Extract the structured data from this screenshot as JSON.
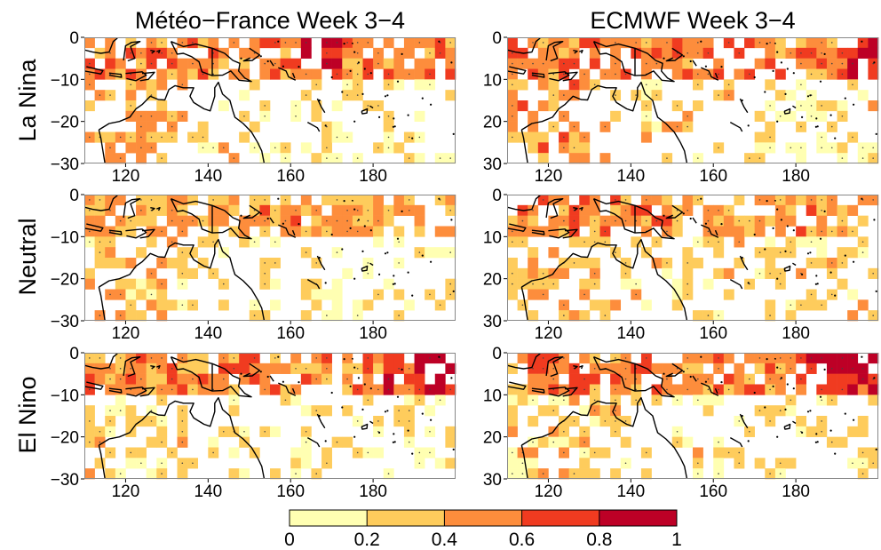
{
  "chart_data": {
    "type": "heatmap",
    "column_titles": [
      "Météo−France Week 3−4",
      "ECMWF Week 3−4"
    ],
    "row_labels": [
      "La Nina",
      "Neutral",
      "El Nino"
    ],
    "x_ticks": [
      "120",
      "140",
      "160",
      "180"
    ],
    "x_tick_values": [
      120,
      140,
      160,
      180
    ],
    "xlim": [
      110,
      200
    ],
    "ylim": [
      -30,
      0
    ],
    "y_ticks": {
      "Météo−France Week 3−4": [
        "0",
        "−10",
        "−20",
        "−30"
      ],
      "ECMWF Week 3−4": [
        "0",
        "10",
        "20",
        "30"
      ]
    },
    "y_tick_values": [
      0,
      -10,
      -20,
      -30
    ],
    "colorbar": {
      "ticks": [
        "0",
        "0.2",
        "0.4",
        "0.6",
        "0.8",
        "1"
      ],
      "bins": [
        [
          0,
          0.2
        ],
        [
          0.2,
          0.4
        ],
        [
          0.4,
          0.6
        ],
        [
          0.6,
          0.8
        ],
        [
          0.8,
          1.0
        ]
      ],
      "colors": [
        "#ffffb2",
        "#fecc5c",
        "#fd8d3c",
        "#f03b20",
        "#bd0026"
      ]
    },
    "grid_resolution_deg": 2.5,
    "panels": [
      {
        "model": "Météo−France Week 3−4",
        "enso": "La Nina"
      },
      {
        "model": "ECMWF Week 3−4",
        "enso": "La Nina"
      },
      {
        "model": "Météo−France Week 3−4",
        "enso": "Neutral"
      },
      {
        "model": "ECMWF Week 3−4",
        "enso": "Neutral"
      },
      {
        "model": "Météo−France Week 3−4",
        "enso": "El Nino"
      },
      {
        "model": "ECMWF Week 3−4",
        "enso": "El Nino"
      }
    ],
    "coastline": [
      [
        [
          113.5,
          -22
        ],
        [
          114,
          -24
        ],
        [
          114.5,
          -27
        ],
        [
          115,
          -30
        ]
      ],
      [
        [
          113.5,
          -22
        ],
        [
          116,
          -20.5
        ],
        [
          118.5,
          -20
        ],
        [
          121,
          -19
        ],
        [
          122.5,
          -17
        ],
        [
          124,
          -16
        ],
        [
          126,
          -14
        ],
        [
          128,
          -14.8
        ],
        [
          129.5,
          -14.9
        ],
        [
          130.5,
          -12.4
        ],
        [
          132,
          -11.5
        ],
        [
          134,
          -12
        ],
        [
          136.5,
          -12
        ],
        [
          135.6,
          -14
        ],
        [
          136.5,
          -15.5
        ],
        [
          139,
          -17
        ],
        [
          140.5,
          -17.5
        ],
        [
          141.6,
          -14
        ],
        [
          141.6,
          -12
        ],
        [
          142.5,
          -10.7
        ],
        [
          143.5,
          -13.5
        ],
        [
          145.3,
          -15
        ],
        [
          146,
          -17.5
        ],
        [
          146.5,
          -19
        ],
        [
          148.5,
          -20.5
        ],
        [
          150.5,
          -22.5
        ],
        [
          152,
          -25
        ],
        [
          153,
          -27
        ],
        [
          153.6,
          -30
        ]
      ],
      [
        [
          131,
          -1
        ],
        [
          134,
          -2.2
        ],
        [
          137,
          -1.6
        ],
        [
          141,
          -2.6
        ],
        [
          144,
          -3.8
        ],
        [
          146,
          -5.5
        ],
        [
          147.7,
          -6.2
        ],
        [
          147.4,
          -8
        ],
        [
          148.9,
          -9.7
        ],
        [
          150.5,
          -10.5
        ],
        [
          147.5,
          -10.2
        ],
        [
          145.5,
          -8
        ],
        [
          143.5,
          -9
        ],
        [
          141,
          -9.1
        ],
        [
          138.5,
          -8.2
        ],
        [
          137.8,
          -5.8
        ],
        [
          136,
          -4.6
        ],
        [
          134,
          -3.8
        ],
        [
          132.5,
          -4
        ],
        [
          131,
          -1
        ]
      ],
      [
        [
          141,
          -2.6
        ],
        [
          141,
          -9.1
        ]
      ],
      [
        [
          110.5,
          -7
        ],
        [
          114.5,
          -7.9
        ],
        [
          114,
          -8.7
        ],
        [
          110,
          -8
        ]
      ],
      [
        [
          116,
          -8.5
        ],
        [
          118.9,
          -8.8
        ],
        [
          119,
          -9.5
        ],
        [
          116,
          -9
        ]
      ],
      [
        [
          120,
          -8.6
        ],
        [
          124,
          -8.2
        ],
        [
          125,
          -9
        ],
        [
          122.5,
          -10.3
        ],
        [
          120.2,
          -9.8
        ]
      ],
      [
        [
          124,
          -8.6
        ],
        [
          127,
          -8.3
        ],
        [
          125.5,
          -10
        ],
        [
          123.5,
          -10.3
        ]
      ],
      [
        [
          119.5,
          -5.5
        ],
        [
          120,
          -2
        ],
        [
          121.5,
          -1.2
        ],
        [
          123.5,
          -1
        ],
        [
          121.2,
          -2.2
        ],
        [
          122.2,
          -5
        ],
        [
          120.5,
          -5.6
        ]
      ],
      [
        [
          110,
          -3
        ],
        [
          112,
          -3.5
        ],
        [
          114,
          -3.8
        ],
        [
          116,
          -3.5
        ],
        [
          117,
          -1
        ],
        [
          118,
          -0.2
        ]
      ],
      [
        [
          127.5,
          -3.4
        ],
        [
          128.3,
          -3.1
        ],
        [
          128,
          -3.8
        ]
      ],
      [
        [
          126,
          -3.1
        ],
        [
          127,
          -3.3
        ],
        [
          126.3,
          -3.8
        ]
      ],
      [
        [
          150,
          -2.6
        ],
        [
          152.5,
          -4.2
        ],
        [
          150.7,
          -5.5
        ],
        [
          148.6,
          -5.6
        ],
        [
          150.2,
          -4.9
        ]
      ],
      [
        [
          155,
          -5.5
        ],
        [
          155.9,
          -6.8
        ]
      ],
      [
        [
          157,
          -7.2
        ],
        [
          158.9,
          -8
        ],
        [
          159.5,
          -9.4
        ],
        [
          161.2,
          -10.2
        ]
      ],
      [
        [
          160.5,
          -8.5
        ],
        [
          161,
          -9.7
        ]
      ],
      [
        [
          166.5,
          -14.6
        ],
        [
          167.4,
          -16.5
        ],
        [
          168.3,
          -17.9
        ]
      ],
      [
        [
          164.1,
          -20.2
        ],
        [
          166.5,
          -21.5
        ],
        [
          167,
          -22.4
        ]
      ],
      [
        [
          177.2,
          -17.6
        ],
        [
          178.6,
          -17
        ],
        [
          178.5,
          -18
        ],
        [
          177.4,
          -18.2
        ],
        [
          177.2,
          -17.6
        ]
      ],
      [
        [
          179.2,
          -16.3
        ],
        [
          180,
          -16.8
        ]
      ],
      [
        [
          174.8,
          -1.4
        ],
        [
          175.2,
          -1.5
        ]
      ]
    ],
    "islands": [
      [
        173,
        -1.5
      ],
      [
        175.5,
        -3.5
      ],
      [
        176.5,
        -6
      ],
      [
        178,
        -7.5
      ],
      [
        179.5,
        -8.5
      ],
      [
        186,
        -10.5
      ],
      [
        183.5,
        -13.8
      ],
      [
        172.5,
        -13
      ],
      [
        177.5,
        -13.5
      ],
      [
        183,
        -14
      ],
      [
        185,
        -19.3
      ],
      [
        185.3,
        -21.2
      ],
      [
        184.9,
        -21.3
      ],
      [
        188.5,
        -18.5
      ],
      [
        181.5,
        -19
      ],
      [
        175.5,
        -20
      ],
      [
        158.2,
        -6.9
      ],
      [
        152.8,
        -4.5
      ],
      [
        148,
        -5
      ],
      [
        157,
        -1
      ],
      [
        162,
        -7
      ],
      [
        154.5,
        -5.7
      ],
      [
        167,
        -15
      ],
      [
        168.5,
        -21
      ],
      [
        174.5,
        -8
      ],
      [
        187,
        -4
      ],
      [
        196,
        -1
      ],
      [
        199,
        -6
      ],
      [
        192,
        -14.5
      ],
      [
        194,
        -16
      ],
      [
        199.5,
        -23
      ],
      [
        189.5,
        -24
      ],
      [
        170,
        -9.5
      ]
    ]
  }
}
